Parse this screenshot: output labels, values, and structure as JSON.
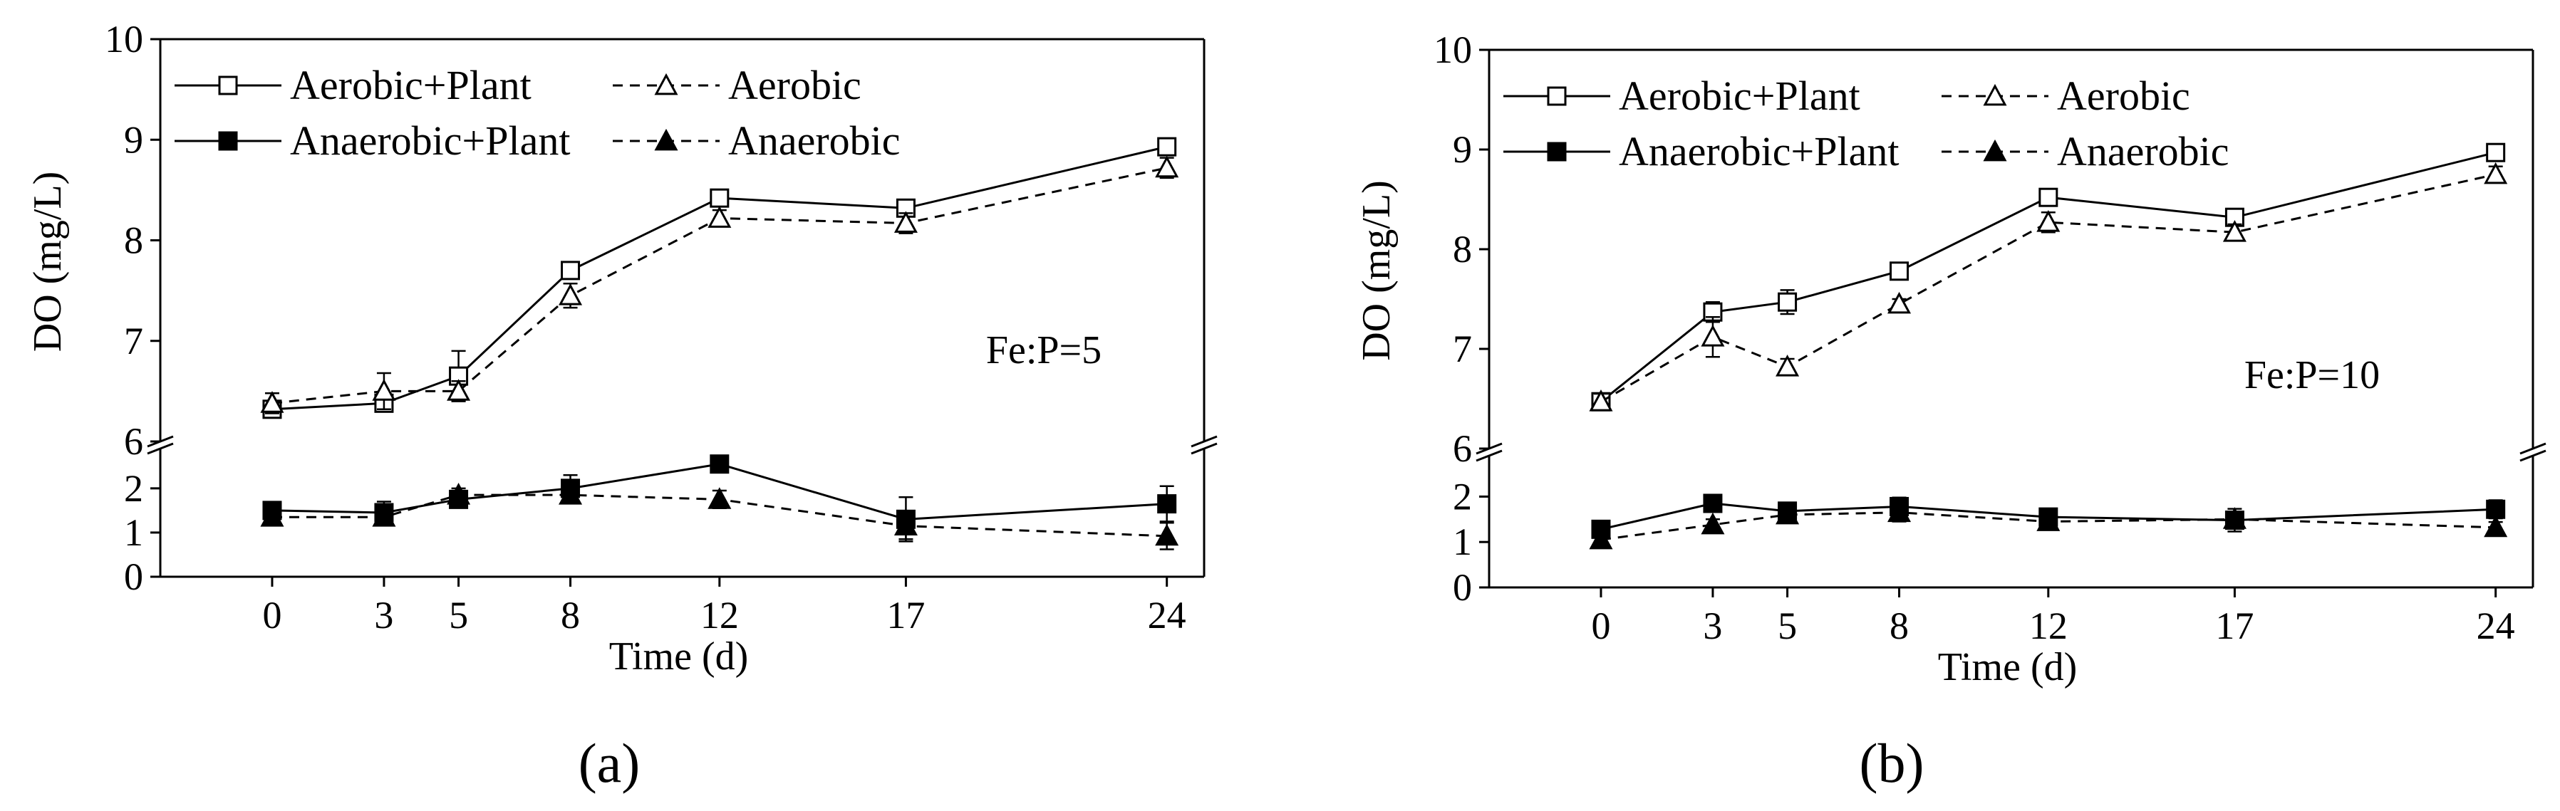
{
  "figure_caption_labels": [
    "(a)",
    "(b)"
  ],
  "chart_data": [
    {
      "type": "line",
      "panel_label": "a",
      "annotation": "Fe:P=5",
      "xlabel": "Time (d)",
      "ylabel": "DO (mg/L)",
      "x_ticks": [
        0,
        3,
        5,
        8,
        12,
        17,
        24
      ],
      "x_range": [
        -3,
        25
      ],
      "y_upper_range": [
        6,
        10
      ],
      "y_upper_ticks": [
        6,
        7,
        8,
        9,
        10
      ],
      "y_lower_range": [
        0,
        2.9
      ],
      "y_lower_ticks": [
        0,
        1,
        2
      ],
      "legend": [
        "Aerobic+Plant",
        "Aerobic",
        "Anaerobic+Plant",
        "Anaerobic"
      ],
      "series": [
        {
          "name": "Aerobic+Plant",
          "marker": "square-open",
          "dash": false,
          "x": [
            0,
            3,
            5,
            8,
            12,
            17,
            24
          ],
          "values": [
            6.32,
            6.38,
            6.65,
            7.7,
            8.42,
            8.32,
            8.93
          ],
          "err": [
            0.08,
            0.05,
            0.25,
            0.05,
            0.05,
            0.05,
            0.05
          ]
        },
        {
          "name": "Aerobic",
          "marker": "triangle-open",
          "dash": true,
          "x": [
            0,
            3,
            5,
            8,
            12,
            17,
            24
          ],
          "values": [
            6.38,
            6.5,
            6.5,
            7.45,
            8.22,
            8.17,
            8.72
          ],
          "err": [
            0.1,
            0.18,
            0.1,
            0.12,
            0.08,
            0.1,
            0.1
          ]
        },
        {
          "name": "Anaerobic+Plant",
          "marker": "square-filled",
          "dash": false,
          "x": [
            0,
            3,
            5,
            8,
            12,
            17,
            24
          ],
          "values": [
            1.5,
            1.45,
            1.75,
            2.0,
            2.55,
            1.3,
            1.65
          ],
          "err": [
            0.1,
            0.25,
            0.1,
            0.3,
            0.15,
            0.5,
            0.4
          ]
        },
        {
          "name": "Anaerobic",
          "marker": "triangle-filled",
          "dash": true,
          "x": [
            0,
            3,
            5,
            8,
            12,
            17,
            24
          ],
          "values": [
            1.35,
            1.35,
            1.85,
            1.85,
            1.75,
            1.15,
            0.92
          ],
          "err": [
            0.1,
            0.15,
            0.15,
            0.15,
            0.2,
            0.3,
            0.3
          ]
        }
      ]
    },
    {
      "type": "line",
      "panel_label": "b",
      "annotation": "Fe:P=10",
      "xlabel": "Time (d)",
      "ylabel": "DO (mg/L)",
      "x_ticks": [
        0,
        3,
        5,
        8,
        12,
        17,
        24
      ],
      "x_range": [
        -3,
        25
      ],
      "y_upper_range": [
        6,
        10
      ],
      "y_upper_ticks": [
        6,
        7,
        8,
        9,
        10
      ],
      "y_lower_range": [
        0,
        2.9
      ],
      "y_lower_ticks": [
        0,
        1,
        2
      ],
      "legend": [
        "Aerobic+Plant",
        "Aerobic",
        "Anaerobic+Plant",
        "Anaerobic"
      ],
      "series": [
        {
          "name": "Aerobic+Plant",
          "marker": "square-open",
          "dash": false,
          "x": [
            0,
            3,
            5,
            8,
            12,
            17,
            24
          ],
          "values": [
            6.47,
            7.37,
            7.47,
            7.78,
            8.52,
            8.32,
            8.97
          ],
          "err": [
            0.08,
            0.1,
            0.12,
            0.05,
            0.08,
            0.05,
            0.05
          ]
        },
        {
          "name": "Aerobic",
          "marker": "triangle-open",
          "dash": true,
          "x": [
            0,
            3,
            5,
            8,
            12,
            17,
            24
          ],
          "values": [
            6.47,
            7.12,
            6.82,
            7.45,
            8.27,
            8.17,
            8.75
          ],
          "err": [
            0.08,
            0.2,
            0.08,
            0.05,
            0.1,
            0.08,
            0.08
          ]
        },
        {
          "name": "Anaerobic+Plant",
          "marker": "square-filled",
          "dash": false,
          "x": [
            0,
            3,
            5,
            8,
            12,
            17,
            24
          ],
          "values": [
            1.28,
            1.85,
            1.68,
            1.78,
            1.55,
            1.48,
            1.72
          ],
          "err": [
            0.1,
            0.1,
            0.15,
            0.2,
            0.12,
            0.25,
            0.2
          ]
        },
        {
          "name": "Anaerobic",
          "marker": "triangle-filled",
          "dash": true,
          "x": [
            0,
            3,
            5,
            8,
            12,
            17,
            24
          ],
          "values": [
            1.05,
            1.38,
            1.6,
            1.65,
            1.45,
            1.5,
            1.32
          ],
          "err": [
            0.1,
            0.12,
            0.15,
            0.2,
            0.1,
            0.12,
            0.12
          ]
        }
      ]
    }
  ]
}
